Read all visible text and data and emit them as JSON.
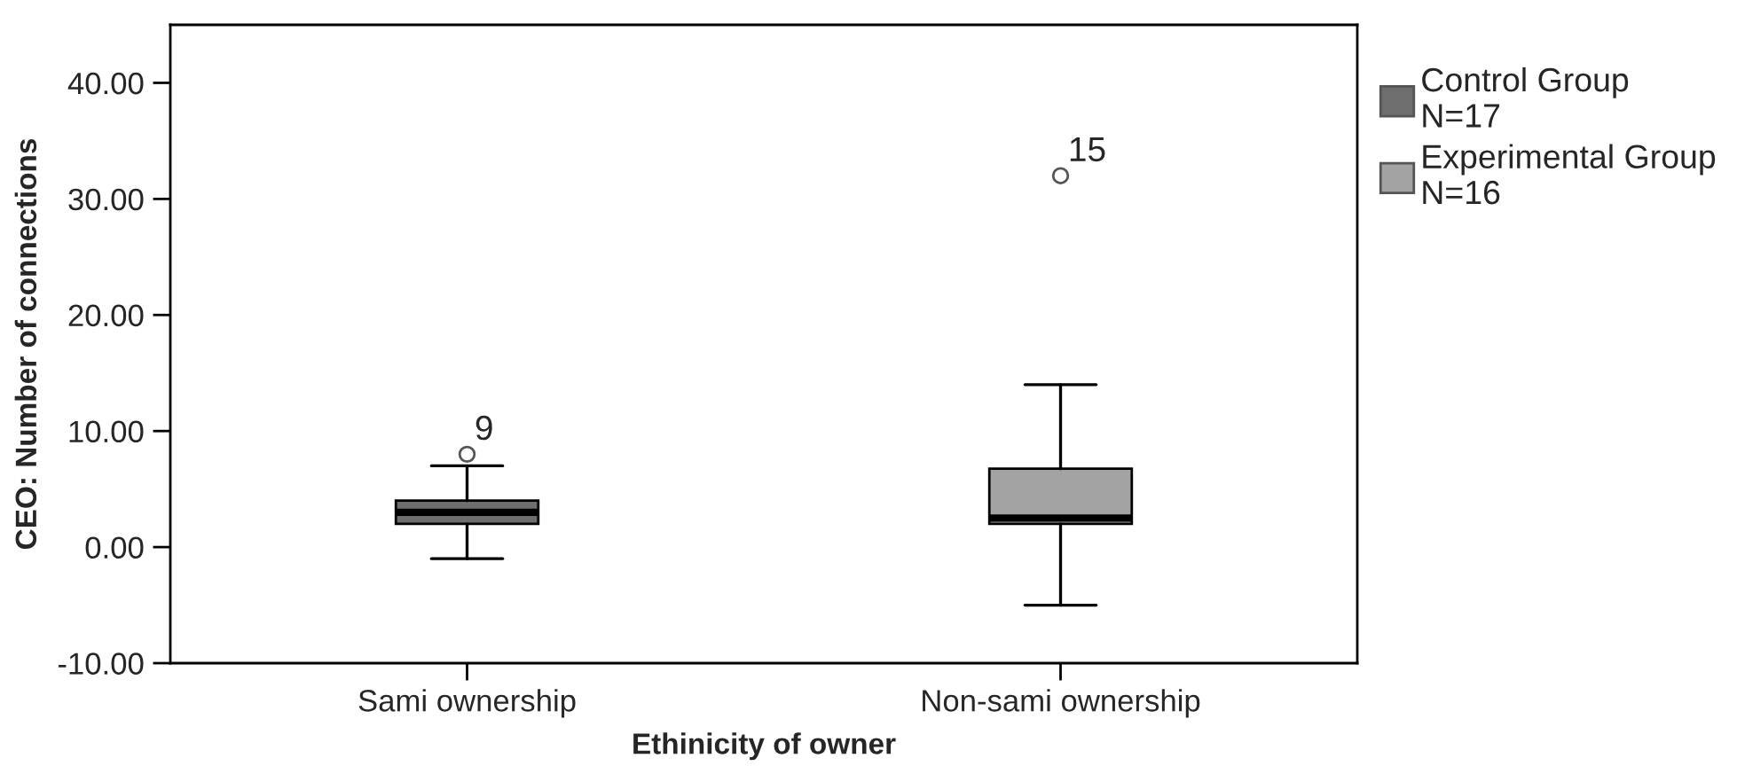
{
  "chart_data": {
    "type": "box",
    "xlabel": "Ethinicity of owner",
    "ylabel": "CEO: Number of connections",
    "categories": [
      "Sami ownership",
      "Non-sami ownership"
    ],
    "series": [
      {
        "name": "Control Group\nN=17",
        "color": "#6e6e6e",
        "boxes": [
          {
            "low": -1,
            "q1": 2,
            "median": 3,
            "q3": 4,
            "high": 7,
            "outliers": [
              8
            ]
          },
          null
        ]
      },
      {
        "name": "Experimental Group\nN=16",
        "color": "#a3a3a3",
        "boxes": [
          null,
          {
            "low": -5,
            "q1": 2,
            "median": 2.5,
            "q3": 6.75,
            "high": 14,
            "outliers": [
              32
            ]
          }
        ]
      }
    ],
    "ylim": [
      -10,
      45
    ],
    "yticks": [
      {
        "value": -10,
        "label": "-10.00"
      },
      {
        "value": 0,
        "label": "0.00"
      },
      {
        "value": 10,
        "label": "10.00"
      },
      {
        "value": 20,
        "label": "20.00"
      },
      {
        "value": 30,
        "label": "30.00"
      },
      {
        "value": 40,
        "label": "40.00"
      }
    ],
    "annotations": [
      "9",
      "15"
    ],
    "marker": "circle",
    "grid": false,
    "legend": "top right"
  }
}
